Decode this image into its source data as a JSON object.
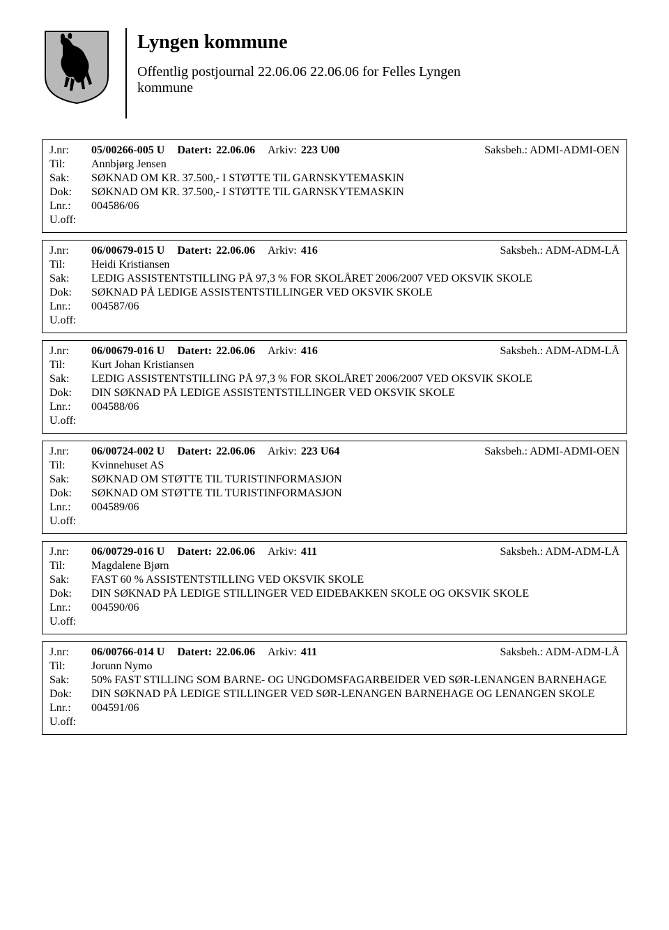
{
  "header": {
    "title": "Lyngen kommune",
    "subtitle_line1": "Offentlig postjournal 22.06.06 22.06.06 for Felles Lyngen",
    "subtitle_line2": "kommune"
  },
  "labels": {
    "jnr": "J.nr:",
    "til": "Til:",
    "sak": "Sak:",
    "dok": "Dok:",
    "lnr": "Lnr.:",
    "uoff": "U.off:",
    "datert": "Datert:",
    "arkiv": "Arkiv:",
    "saksbeh": "Saksbeh.:"
  },
  "entries": [
    {
      "jnr": "05/00266-005 U",
      "datert": "22.06.06",
      "arkiv": "223 U00",
      "saksbeh": "ADMI-ADMI-OEN",
      "til": "Annbjørg Jensen",
      "sak": "SØKNAD OM  KR. 37.500,- I STØTTE TIL GARNSKYTEMASKIN",
      "dok": "SØKNAD OM  KR. 37.500,- I STØTTE TIL GARNSKYTEMASKIN",
      "lnr": "004586/06",
      "uoff": ""
    },
    {
      "jnr": "06/00679-015 U",
      "datert": "22.06.06",
      "arkiv": "416",
      "saksbeh": "ADM-ADM-LÅ",
      "til": "Heidi Kristiansen",
      "sak": "LEDIG ASSISTENTSTILLING  PÅ 97,3 % FOR SKOLÅRET 2006/2007 VED OKSVIK SKOLE",
      "dok": "SØKNAD PÅ LEDIGE ASSISTENTSTILLINGER VED OKSVIK SKOLE",
      "lnr": "004587/06",
      "uoff": ""
    },
    {
      "jnr": "06/00679-016 U",
      "datert": "22.06.06",
      "arkiv": "416",
      "saksbeh": "ADM-ADM-LÅ",
      "til": "Kurt Johan Kristiansen",
      "sak": "LEDIG ASSISTENTSTILLING  PÅ 97,3 % FOR SKOLÅRET 2006/2007 VED OKSVIK SKOLE",
      "dok": "DIN SØKNAD PÅ LEDIGE ASSISTENTSTILLINGER VED OKSVIK SKOLE",
      "lnr": "004588/06",
      "uoff": ""
    },
    {
      "jnr": "06/00724-002 U",
      "datert": "22.06.06",
      "arkiv": "223 U64",
      "saksbeh": "ADMI-ADMI-OEN",
      "til": "Kvinnehuset AS",
      "sak": "SØKNAD OM STØTTE TIL TURISTINFORMASJON",
      "dok": "SØKNAD OM STØTTE TIL TURISTINFORMASJON",
      "lnr": "004589/06",
      "uoff": ""
    },
    {
      "jnr": "06/00729-016 U",
      "datert": "22.06.06",
      "arkiv": "411",
      "saksbeh": "ADM-ADM-LÅ",
      "til": "Magdalene Bjørn",
      "sak": "FAST 60 % ASSISTENTSTILLING VED OKSVIK SKOLE",
      "dok": "DIN SØKNAD PÅ LEDIGE STILLINGER VED EIDEBAKKEN SKOLE OG OKSVIK SKOLE",
      "lnr": "004590/06",
      "uoff": ""
    },
    {
      "jnr": "06/00766-014 U",
      "datert": "22.06.06",
      "arkiv": "411",
      "saksbeh": "ADM-ADM-LÅ",
      "til": "Jorunn Nymo",
      "sak": "50% FAST STILLING SOM BARNE- OG UNGDOMSFAGARBEIDER VED SØR-LENANGEN BARNEHAGE",
      "dok": "DIN SØKNAD PÅ LEDIGE STILLINGER VED SØR-LENANGEN BARNEHAGE OG LENANGEN SKOLE",
      "lnr": "004591/06",
      "uoff": ""
    }
  ],
  "logo": {
    "shield_fill": "#b8b8b8",
    "shield_stroke": "#000000",
    "horse_fill": "#000000"
  }
}
